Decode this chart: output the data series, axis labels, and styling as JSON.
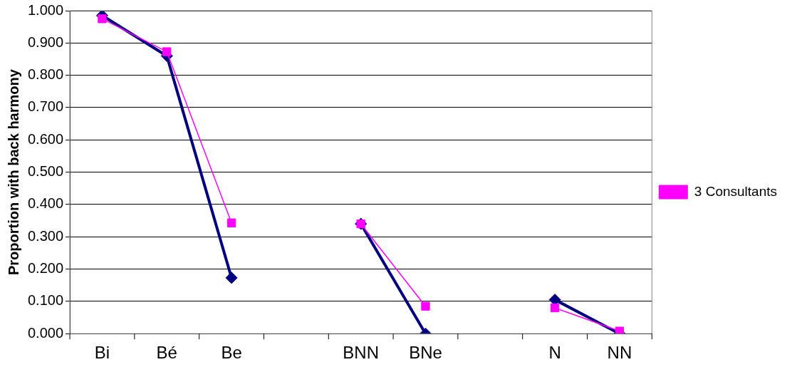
{
  "chart_data": {
    "type": "line",
    "ylabel": "Proportion with back harmony",
    "categories": [
      "Bi",
      "Bé",
      "Be",
      null,
      "BNN",
      "BNe",
      null,
      "N",
      "NN"
    ],
    "series": [
      {
        "color": "#000080",
        "marker": "diamond",
        "values": [
          0.985,
          0.86,
          0.173,
          null,
          0.34,
          0.0,
          null,
          0.105,
          0.0
        ]
      },
      {
        "name": "3 Consultants",
        "color": "#ff00ff",
        "marker": "square",
        "values": [
          0.975,
          0.873,
          0.343,
          null,
          0.34,
          0.085,
          null,
          0.08,
          0.008
        ]
      }
    ],
    "ylim": [
      0,
      1
    ],
    "yticks": [
      {
        "value": 0,
        "label": "0.000"
      },
      {
        "value": 0.1,
        "label": "0.100"
      },
      {
        "value": 0.2,
        "label": "0.200"
      },
      {
        "value": 0.3,
        "label": "0.300"
      },
      {
        "value": 0.4,
        "label": "0.400"
      },
      {
        "value": 0.5,
        "label": "0.500"
      },
      {
        "value": 0.6,
        "label": "0.600"
      },
      {
        "value": 0.7,
        "label": "0.700"
      },
      {
        "value": 0.8,
        "label": "0.800"
      },
      {
        "value": 0.9,
        "label": "0.900"
      },
      {
        "value": 1,
        "label": "1.000"
      }
    ],
    "grid": "y",
    "legend": "right"
  }
}
